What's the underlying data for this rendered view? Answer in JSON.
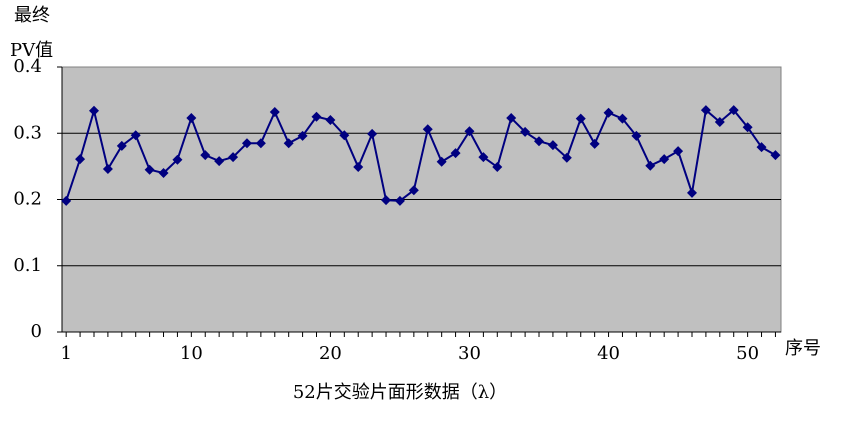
{
  "chart_data": {
    "type": "line",
    "ylabel": [
      "最终",
      "PV值"
    ],
    "xlabel": "52片交验片面形数据（λ）",
    "xunit": "序号",
    "x": [
      1,
      2,
      3,
      4,
      5,
      6,
      7,
      8,
      9,
      10,
      11,
      12,
      13,
      14,
      15,
      16,
      17,
      18,
      19,
      20,
      21,
      22,
      23,
      24,
      25,
      26,
      27,
      28,
      29,
      30,
      31,
      32,
      33,
      34,
      35,
      36,
      37,
      38,
      39,
      40,
      41,
      42,
      43,
      44,
      45,
      46,
      47,
      48,
      49,
      50,
      51,
      52
    ],
    "series": [
      {
        "color": "#000080",
        "values": [
          0.198,
          0.261,
          0.334,
          0.246,
          0.281,
          0.297,
          0.245,
          0.24,
          0.26,
          0.323,
          0.267,
          0.258,
          0.264,
          0.285,
          0.285,
          0.332,
          0.285,
          0.296,
          0.325,
          0.32,
          0.297,
          0.249,
          0.299,
          0.199,
          0.198,
          0.214,
          0.306,
          0.257,
          0.27,
          0.303,
          0.264,
          0.249,
          0.323,
          0.302,
          0.288,
          0.282,
          0.263,
          0.322,
          0.284,
          0.331,
          0.322,
          0.296,
          0.251,
          0.261,
          0.273,
          0.21,
          0.335,
          0.317,
          0.335,
          0.309,
          0.279,
          0.267
        ]
      }
    ],
    "xlim": [
      0.7,
      52.4
    ],
    "xticks": [
      1,
      10,
      20,
      30,
      40,
      50
    ],
    "ylim": [
      0,
      0.4
    ],
    "yticks": [
      0,
      0.1,
      0.2,
      0.3,
      0.4
    ],
    "grid": true,
    "background": "#c0c0c0"
  }
}
